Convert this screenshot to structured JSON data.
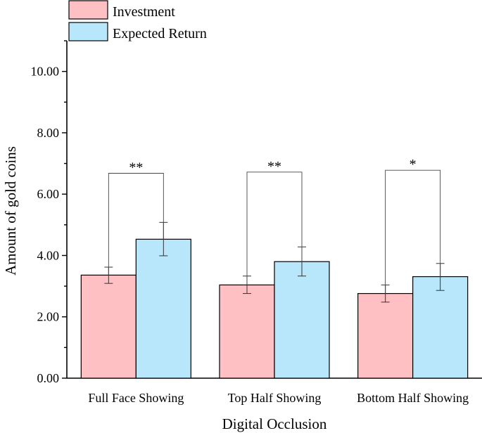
{
  "chart_data": {
    "type": "bar",
    "title": "",
    "xlabel": "Digital Occlusion",
    "ylabel": "Amount of gold coins",
    "ylim": [
      0,
      11
    ],
    "yticks": [
      0,
      2,
      4,
      6,
      8,
      10
    ],
    "ytick_labels": [
      "0.00",
      "2.00",
      "4.00",
      "6.00",
      "8.00",
      "10.00"
    ],
    "categories": [
      "Full Face Showing",
      "Top Half Showing",
      "Bottom Half Showing"
    ],
    "series": [
      {
        "name": "Investment",
        "color": "#ffc0c4",
        "values": [
          3.36,
          3.04,
          2.76
        ],
        "err_low": [
          3.09,
          2.76,
          2.48
        ],
        "err_high": [
          3.62,
          3.33,
          3.04
        ]
      },
      {
        "name": "Expected Return",
        "color": "#b8e6fb",
        "values": [
          4.53,
          3.8,
          3.31
        ],
        "err_low": [
          3.99,
          3.33,
          2.86
        ],
        "err_high": [
          5.08,
          4.28,
          3.74
        ]
      }
    ],
    "significance": [
      "**",
      "**",
      "*"
    ],
    "significance_levels": [
      6.68,
      6.72,
      6.78
    ],
    "legend": [
      "Investment",
      "Expected Return"
    ],
    "legend_position": "top-left",
    "grid": false
  }
}
